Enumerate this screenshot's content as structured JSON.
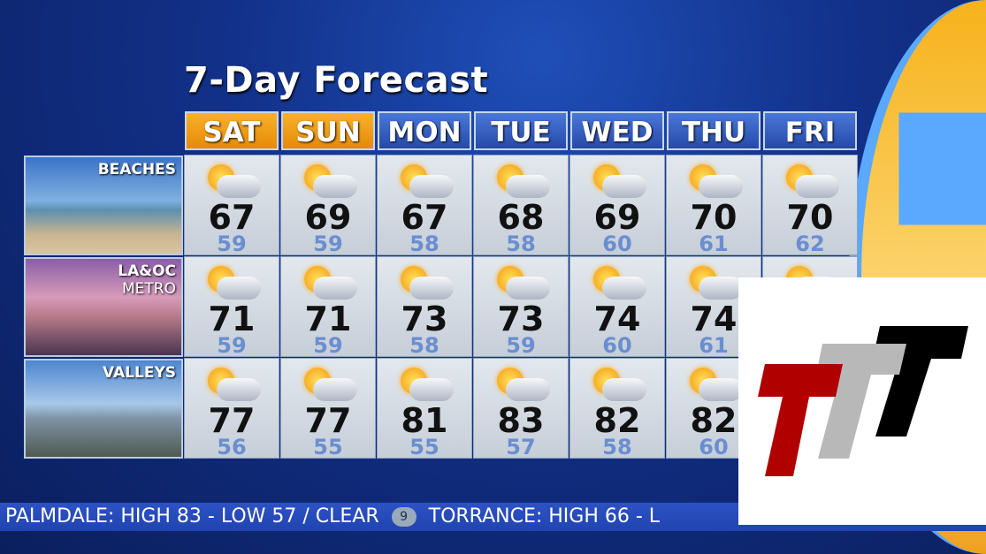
{
  "title": "7-Day Forecast",
  "days": [
    "SAT",
    "SUN",
    "MON",
    "TUE",
    "WED",
    "THU",
    "FRI"
  ],
  "regions": [
    {
      "label": "BEACHES",
      "highs": [
        "67",
        "69",
        "67",
        "68",
        "69",
        "70",
        "70"
      ],
      "lows": [
        "59",
        "59",
        "58",
        "58",
        "60",
        "61",
        "62"
      ]
    },
    {
      "label": "LA&OC",
      "sublabel": "METRO",
      "highs": [
        "71",
        "71",
        "73",
        "73",
        "74",
        "74",
        ""
      ],
      "lows": [
        "59",
        "59",
        "58",
        "59",
        "60",
        "61",
        ""
      ]
    },
    {
      "label": "VALLEYS",
      "highs": [
        "77",
        "77",
        "81",
        "83",
        "82",
        "82",
        ""
      ],
      "lows": [
        "56",
        "55",
        "55",
        "57",
        "58",
        "60",
        ""
      ]
    }
  ],
  "condition_icon": "partly-cloudy-icon",
  "ticker": {
    "item1": "PALMDALE: HIGH 83 - LOW 57 / CLEAR",
    "logo": "9",
    "item2": "TORRANCE: HIGH 66 - L"
  },
  "overlay_logo": {
    "text": "TTT",
    "colors": [
      "#b00000",
      "#b8b8b8",
      "#000000"
    ]
  }
}
